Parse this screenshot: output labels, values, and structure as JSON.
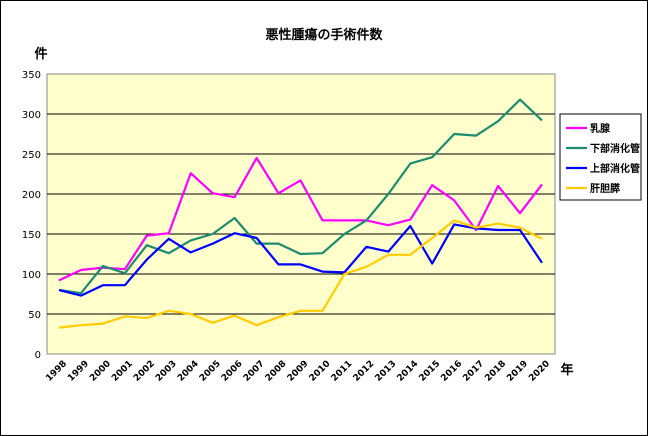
{
  "chart_data": {
    "type": "line",
    "title": "悪性腫瘍の手術件数",
    "ylabel": "件",
    "xlabel": "年",
    "ylim": [
      0,
      350
    ],
    "yticks": [
      0,
      50,
      100,
      150,
      200,
      250,
      300,
      350
    ],
    "grid": true,
    "legend_position": "right",
    "plot_background": "#ffffcc",
    "categories": [
      "1998",
      "1999",
      "2000",
      "2001",
      "2002",
      "2003",
      "2004",
      "2005",
      "2006",
      "2007",
      "2008",
      "2009",
      "2010",
      "2011",
      "2012",
      "2013",
      "2014",
      "2015",
      "2016",
      "2017",
      "2018",
      "2019",
      "2020"
    ],
    "series": [
      {
        "name": "乳腺",
        "color": "#ff00ff",
        "values": [
          92,
          105,
          108,
          106,
          148,
          151,
          226,
          201,
          196,
          245,
          201,
          217,
          167,
          167,
          167,
          161,
          168,
          211,
          192,
          155,
          210,
          176,
          212
        ]
      },
      {
        "name": "下部消化管",
        "color": "#1b8c6e",
        "values": [
          80,
          76,
          110,
          101,
          136,
          126,
          142,
          150,
          170,
          138,
          138,
          125,
          126,
          150,
          167,
          200,
          238,
          246,
          275,
          273,
          291,
          318,
          292
        ]
      },
      {
        "name": "上部消化管",
        "color": "#0000ff",
        "values": [
          80,
          73,
          86,
          86,
          118,
          144,
          127,
          138,
          151,
          145,
          112,
          112,
          103,
          102,
          134,
          128,
          160,
          113,
          162,
          157,
          155,
          155,
          114
        ]
      },
      {
        "name": "肝胆膵",
        "color": "#ffcc00",
        "values": [
          33,
          36,
          38,
          47,
          45,
          54,
          50,
          39,
          48,
          36,
          46,
          54,
          54,
          100,
          109,
          124,
          124,
          145,
          167,
          158,
          163,
          158,
          144
        ]
      }
    ]
  }
}
